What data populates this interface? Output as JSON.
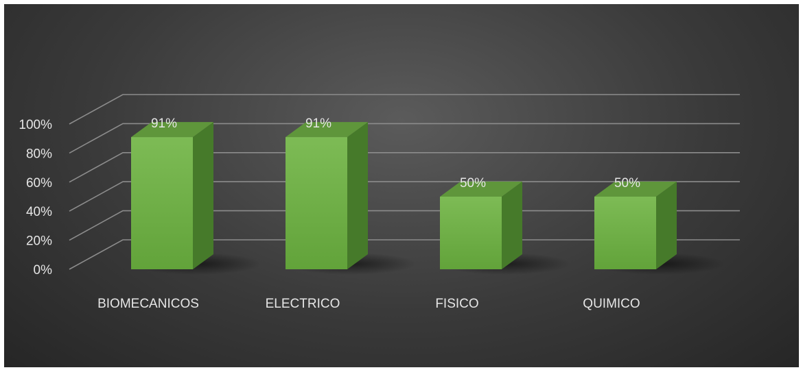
{
  "chart_data": {
    "type": "bar",
    "style": "3d-column",
    "categories": [
      "BIOMECANICOS",
      "ELECTRICO",
      "FISICO",
      "QUIMICO"
    ],
    "values": [
      91,
      91,
      50,
      50
    ],
    "data_labels": [
      "91%",
      "91%",
      "50%",
      "50%"
    ],
    "yticks": [
      "0%",
      "20%",
      "40%",
      "60%",
      "80%",
      "100%"
    ],
    "ylim": [
      0,
      100
    ],
    "grid": true,
    "legend": "none",
    "colors": {
      "bar_front": "#70ad47",
      "bar_top": "#5f963b",
      "bar_side": "#467a2a",
      "grid": "#8c8c8c",
      "background": "#404040",
      "text": "#e6e6e6"
    }
  }
}
